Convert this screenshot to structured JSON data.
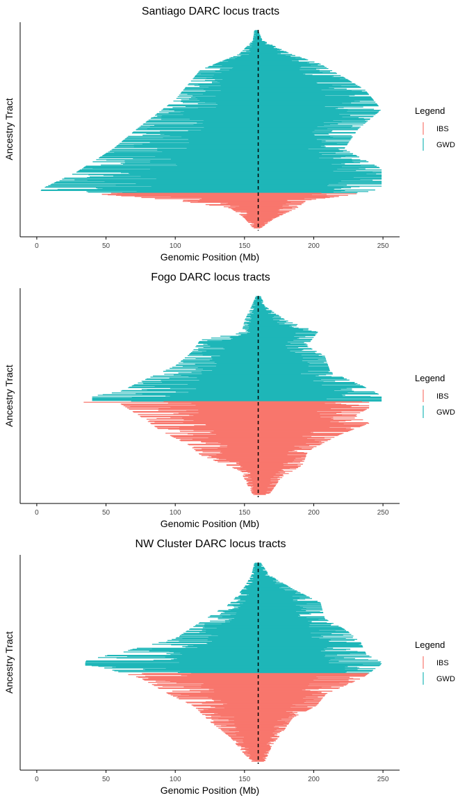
{
  "chart_data": [
    {
      "type": "bar",
      "orientation": "horizontal-range",
      "title": "Santiago DARC locus tracts",
      "xlabel": "Genomic Position (Mb)",
      "ylabel": "Ancestry Tract",
      "xlim": [
        -12,
        262
      ],
      "xticks": [
        0,
        50,
        100,
        150,
        200,
        250
      ],
      "reference_line": 159.9,
      "legend_title": "Legend",
      "legend_placement": "right",
      "series": [
        {
          "name": "IBS",
          "color": "#F8766D",
          "count": 65,
          "min_start": 47,
          "max_end": 231
        },
        {
          "name": "GWD",
          "color": "#1EB6B8",
          "count": 300,
          "min_start": 2,
          "max_end": 249
        }
      ]
    },
    {
      "type": "bar",
      "orientation": "horizontal-range",
      "title": "Fogo DARC locus tracts",
      "xlabel": "Genomic Position (Mb)",
      "ylabel": "Ancestry Tract",
      "xlim": [
        -12,
        262
      ],
      "xticks": [
        0,
        50,
        100,
        150,
        200,
        250
      ],
      "reference_line": 159.9,
      "legend_title": "Legend",
      "legend_placement": "right",
      "series": [
        {
          "name": "IBS",
          "color": "#F8766D",
          "count": 160,
          "min_start": 16,
          "max_end": 240
        },
        {
          "name": "GWD",
          "color": "#1EB6B8",
          "count": 180,
          "min_start": 40,
          "max_end": 249
        }
      ]
    },
    {
      "type": "bar",
      "orientation": "horizontal-range",
      "title": "NW Cluster DARC locus tracts",
      "xlabel": "Genomic Position (Mb)",
      "ylabel": "Ancestry Tract",
      "xlim": [
        -12,
        262
      ],
      "xticks": [
        0,
        50,
        100,
        150,
        200,
        250
      ],
      "reference_line": 159.9,
      "legend_title": "Legend",
      "legend_placement": "right",
      "series": [
        {
          "name": "IBS",
          "color": "#F8766D",
          "count": 160,
          "min_start": 21,
          "max_end": 249
        },
        {
          "name": "GWD",
          "color": "#1EB6B8",
          "count": 200,
          "min_start": 35,
          "max_end": 249
        }
      ]
    }
  ]
}
